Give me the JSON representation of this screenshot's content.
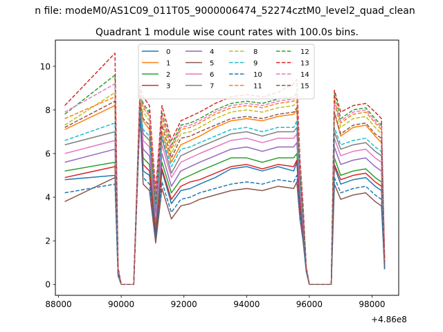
{
  "chart_data": {
    "type": "line",
    "suptitle": "n file: modeM0/AS1C09_011T05_9000006474_52274cztM0_level2_quad_clean",
    "title": "Quadrant 1 module wise count rates with 100.0s bins.",
    "xlabel": "",
    "ylabel": "",
    "x_offset_label": "+4.86e8",
    "xlim": [
      87900,
      98850
    ],
    "ylim": [
      -0.5,
      11.2
    ],
    "xticks": [
      88000,
      90000,
      92000,
      94000,
      96000,
      98000
    ],
    "xtick_labels": [
      "88000",
      "90000",
      "92000",
      "94000",
      "96000",
      "98000"
    ],
    "yticks": [
      0,
      2,
      4,
      6,
      8,
      10
    ],
    "ytick_labels": [
      "0",
      "2",
      "4",
      "6",
      "8",
      "10"
    ],
    "legend_position": "top-center",
    "x": [
      88200,
      89800,
      89900,
      90000,
      90400,
      90600,
      90700,
      90900,
      91100,
      91300,
      91600,
      91900,
      92200,
      92500,
      93000,
      93500,
      94000,
      94500,
      95000,
      95500,
      95600,
      95700,
      95800,
      95900,
      96000,
      96700,
      96800,
      97000,
      97400,
      97800,
      98100,
      98300,
      98400
    ],
    "series": [
      {
        "name": "0",
        "style": "solid",
        "color": "#1f77b4",
        "values": [
          4.8,
          5.0,
          0.5,
          0,
          0,
          8.2,
          5.2,
          5.0,
          2.0,
          5.2,
          3.7,
          4.3,
          4.4,
          4.6,
          4.9,
          5.3,
          5.4,
          5.2,
          5.4,
          5.2,
          5.6,
          3.5,
          2.3,
          0.7,
          0,
          0,
          5.4,
          4.6,
          4.8,
          4.9,
          4.5,
          4.3,
          0.8
        ]
      },
      {
        "name": "1",
        "style": "solid",
        "color": "#ff7f0e",
        "values": [
          7.1,
          8.2,
          0.6,
          0,
          0,
          8.4,
          7.5,
          7.1,
          3.6,
          7.0,
          5.6,
          6.4,
          6.6,
          6.8,
          7.2,
          7.5,
          7.6,
          7.5,
          7.7,
          7.8,
          8.0,
          5.1,
          3.2,
          0.8,
          0,
          0,
          7.9,
          6.8,
          7.2,
          7.3,
          6.8,
          6.5,
          1.0
        ]
      },
      {
        "name": "2",
        "style": "solid",
        "color": "#2ca02c",
        "values": [
          5.2,
          5.6,
          0.5,
          0,
          0,
          8.0,
          5.8,
          5.5,
          2.6,
          5.6,
          4.2,
          4.8,
          5.0,
          5.2,
          5.5,
          5.8,
          5.8,
          5.6,
          5.8,
          5.8,
          6.0,
          3.9,
          2.5,
          0.7,
          0,
          0,
          5.8,
          5.0,
          5.2,
          5.3,
          4.9,
          4.7,
          0.9
        ]
      },
      {
        "name": "3",
        "style": "solid",
        "color": "#d62728",
        "values": [
          4.9,
          5.4,
          0.5,
          0,
          0,
          8.5,
          5.5,
          5.2,
          2.3,
          5.3,
          3.9,
          4.5,
          4.7,
          4.8,
          5.1,
          5.4,
          5.5,
          5.3,
          5.5,
          5.4,
          5.7,
          3.7,
          2.4,
          0.7,
          0,
          0,
          5.5,
          4.8,
          5.0,
          5.1,
          4.7,
          4.5,
          0.8
        ]
      },
      {
        "name": "4",
        "style": "solid",
        "color": "#9467bd",
        "values": [
          5.6,
          6.2,
          0.6,
          0,
          0,
          8.1,
          6.2,
          5.9,
          2.9,
          6.0,
          4.5,
          5.2,
          5.4,
          5.6,
          5.9,
          6.2,
          6.3,
          6.1,
          6.3,
          6.3,
          6.5,
          4.2,
          2.7,
          0.7,
          0,
          0,
          6.3,
          5.5,
          5.7,
          5.8,
          5.4,
          5.2,
          0.9
        ]
      },
      {
        "name": "5",
        "style": "solid",
        "color": "#8c564b",
        "values": [
          3.8,
          4.9,
          0.4,
          0,
          0,
          7.9,
          4.6,
          4.3,
          1.9,
          4.4,
          3.0,
          3.6,
          3.7,
          3.9,
          4.1,
          4.3,
          4.4,
          4.3,
          4.5,
          4.4,
          4.7,
          3.0,
          2.0,
          0.6,
          0,
          0,
          4.6,
          3.9,
          4.1,
          4.2,
          3.8,
          3.6,
          0.7
        ]
      },
      {
        "name": "6",
        "style": "solid",
        "color": "#e377c2",
        "values": [
          6.0,
          6.6,
          0.6,
          0,
          0,
          8.3,
          6.6,
          6.3,
          3.1,
          6.4,
          4.9,
          5.6,
          5.8,
          6.0,
          6.3,
          6.6,
          6.7,
          6.5,
          6.7,
          6.7,
          6.9,
          4.5,
          2.9,
          0.7,
          0,
          0,
          6.7,
          5.9,
          6.1,
          6.2,
          5.8,
          5.6,
          0.9
        ]
      },
      {
        "name": "7",
        "style": "solid",
        "color": "#7f7f7f",
        "values": [
          6.4,
          7.0,
          0.6,
          0,
          0,
          8.2,
          6.9,
          6.6,
          3.3,
          6.7,
          5.1,
          5.9,
          6.1,
          6.3,
          6.6,
          6.9,
          7.0,
          6.8,
          7.0,
          7.0,
          7.2,
          4.7,
          3.0,
          0.7,
          0,
          0,
          7.0,
          6.2,
          6.4,
          6.5,
          6.1,
          5.9,
          1.0
        ]
      },
      {
        "name": "8",
        "style": "dashed",
        "color": "#bcbd22",
        "values": [
          7.3,
          8.8,
          0.7,
          0,
          0,
          8.6,
          7.9,
          7.5,
          3.9,
          7.5,
          6.0,
          6.9,
          7.0,
          7.2,
          7.6,
          7.9,
          8.0,
          7.9,
          8.1,
          8.2,
          8.4,
          5.4,
          3.4,
          0.8,
          0,
          0,
          8.3,
          7.2,
          7.6,
          7.7,
          7.2,
          6.9,
          1.1
        ]
      },
      {
        "name": "9",
        "style": "dashed",
        "color": "#17becf",
        "values": [
          6.6,
          7.4,
          0.6,
          0,
          0,
          8.0,
          7.1,
          6.8,
          3.5,
          6.8,
          5.4,
          6.2,
          6.3,
          6.5,
          6.8,
          7.1,
          7.2,
          7.0,
          7.2,
          7.2,
          7.5,
          4.9,
          3.1,
          0.7,
          0,
          0,
          7.2,
          6.4,
          6.6,
          6.7,
          6.3,
          6.1,
          1.0
        ]
      },
      {
        "name": "10",
        "style": "dashed",
        "color": "#1f77b4",
        "values": [
          4.2,
          4.6,
          0.4,
          0,
          0,
          7.8,
          4.9,
          4.6,
          2.1,
          4.7,
          3.3,
          3.9,
          4.0,
          4.2,
          4.4,
          4.6,
          4.7,
          4.6,
          4.8,
          4.7,
          5.0,
          3.2,
          2.1,
          0.6,
          0,
          0,
          4.9,
          4.2,
          4.4,
          4.5,
          4.1,
          3.9,
          0.7
        ]
      },
      {
        "name": "11",
        "style": "dashed",
        "color": "#ff7f0e",
        "values": [
          7.6,
          8.6,
          0.7,
          0,
          0,
          8.7,
          8.1,
          7.7,
          4.0,
          7.7,
          6.2,
          7.1,
          7.2,
          7.4,
          7.8,
          8.1,
          8.2,
          8.1,
          8.3,
          8.4,
          8.6,
          5.5,
          3.5,
          0.8,
          0,
          0,
          8.5,
          7.4,
          7.8,
          7.9,
          7.4,
          7.1,
          1.1
        ]
      },
      {
        "name": "12",
        "style": "dashed",
        "color": "#2ca02c",
        "values": [
          7.8,
          9.6,
          0.7,
          0,
          0,
          8.8,
          8.3,
          7.9,
          4.1,
          7.9,
          6.4,
          7.3,
          7.4,
          7.6,
          8.0,
          8.3,
          8.4,
          8.3,
          8.5,
          8.6,
          8.8,
          5.6,
          3.6,
          0.8,
          0,
          0,
          8.8,
          7.6,
          8.0,
          8.1,
          7.6,
          7.3,
          1.1
        ]
      },
      {
        "name": "13",
        "style": "dashed",
        "color": "#d62728",
        "values": [
          8.2,
          10.6,
          0.8,
          0,
          0,
          9.1,
          8.6,
          8.2,
          4.3,
          8.2,
          6.6,
          7.5,
          7.7,
          7.9,
          8.3,
          8.6,
          8.7,
          8.6,
          8.8,
          9.2,
          9.4,
          5.8,
          3.7,
          0.8,
          0,
          0,
          8.9,
          7.9,
          8.2,
          8.3,
          7.9,
          7.6,
          1.2
        ]
      },
      {
        "name": "14",
        "style": "dashed",
        "color": "#e377c2",
        "values": [
          7.9,
          9.2,
          0.7,
          0,
          0,
          8.5,
          8.2,
          7.8,
          4.0,
          7.8,
          6.3,
          7.2,
          7.3,
          7.5,
          7.9,
          8.2,
          8.3,
          8.2,
          8.4,
          8.5,
          8.7,
          5.5,
          3.5,
          0.8,
          0,
          0,
          8.3,
          7.5,
          7.9,
          8.0,
          7.5,
          7.2,
          1.1
        ]
      },
      {
        "name": "15",
        "style": "dashed",
        "color": "#8c564b",
        "values": [
          7.2,
          8.4,
          0.6,
          0,
          0,
          8.3,
          7.6,
          7.3,
          3.7,
          7.3,
          5.8,
          6.7,
          6.8,
          7.0,
          7.3,
          7.6,
          7.7,
          7.6,
          7.8,
          7.9,
          8.1,
          5.2,
          3.3,
          0.7,
          0,
          0,
          7.9,
          6.9,
          7.3,
          7.4,
          6.9,
          6.7,
          1.0
        ]
      }
    ]
  }
}
